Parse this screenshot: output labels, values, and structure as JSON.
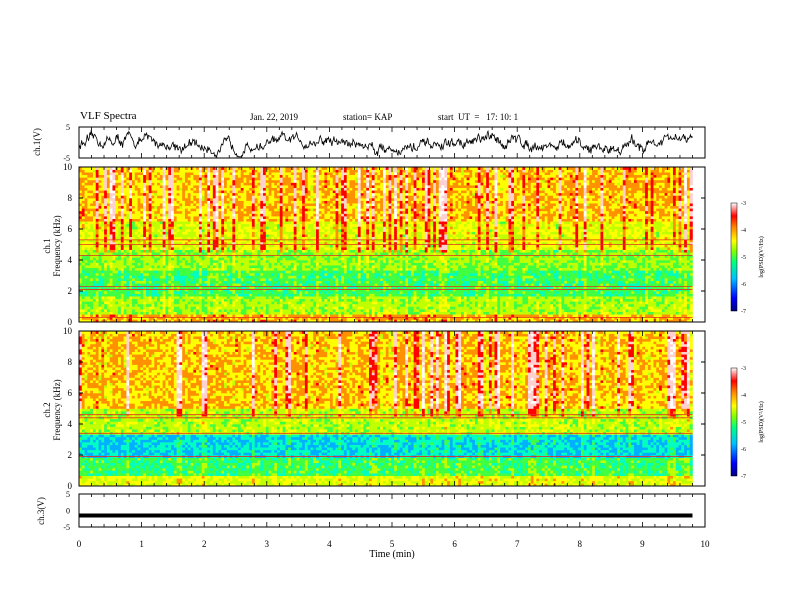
{
  "header": {
    "title": "VLF Spectra",
    "date": "Jan. 22, 2019",
    "station": "station= KAP",
    "start": "start  UT  =   17: 10: 1"
  },
  "colors": {
    "colormap": [
      "#000080",
      "#0000ff",
      "#00b0ff",
      "#00ffc0",
      "#40ff40",
      "#c0ff00",
      "#ffff00",
      "#ff9000",
      "#ff0000",
      "#ffd0d0",
      "#ffffff"
    ],
    "waveform": "#000000"
  },
  "chart_data": [
    {
      "type": "line",
      "name": "ch1-waveform",
      "ylabel": "ch.1(V)",
      "ylim": [
        -5,
        5
      ],
      "yticks": [
        "5",
        "-5"
      ],
      "xlim": [
        0,
        9.8
      ],
      "description_values": "noisy signal fluctuating mostly between -3 and 2 V"
    },
    {
      "type": "heatmap",
      "name": "ch1-spectrogram",
      "ylabel_top": "ch.1",
      "ylabel": "Frequency (kHz)",
      "ylim": [
        0,
        10
      ],
      "yticks": [
        "0",
        "2",
        "4",
        "6",
        "8",
        "10"
      ],
      "xlim": [
        0,
        9.8
      ],
      "colorbar": {
        "label": "log(PSD)(V²/Hz)",
        "range": [
          -7,
          -3
        ],
        "ticks": [
          "-3",
          "-4",
          "-5",
          "-6",
          "-7"
        ]
      },
      "bands": [
        {
          "range": [
            0,
            0.5
          ],
          "level": -4.2
        },
        {
          "range": [
            0.5,
            1.6
          ],
          "level": -4.9
        },
        {
          "range": [
            1.6,
            3.3
          ],
          "level": -5.3
        },
        {
          "range": [
            3.3,
            4.6
          ],
          "level": -5.0
        },
        {
          "range": [
            4.6,
            6.5
          ],
          "level": -4.6
        },
        {
          "range": [
            6.5,
            10
          ],
          "level": -4.2
        }
      ],
      "lines_khz": [
        0.3,
        2.1,
        2.3,
        4.3,
        5.0,
        5.3
      ]
    },
    {
      "type": "heatmap",
      "name": "ch2-spectrogram",
      "ylabel_top": "ch.2",
      "ylabel": "Frequency (kHz)",
      "ylim": [
        0,
        10
      ],
      "yticks": [
        "0",
        "2",
        "4",
        "6",
        "8",
        "10"
      ],
      "xlim": [
        0,
        9.8
      ],
      "colorbar": {
        "label": "log(PSD)(V²/Hz)",
        "range": [
          -7,
          -3
        ],
        "ticks": [
          "-3",
          "-4",
          "-5",
          "-6",
          "-7"
        ]
      },
      "bands": [
        {
          "range": [
            0,
            0.6
          ],
          "level": -4.6
        },
        {
          "range": [
            0.6,
            1.8
          ],
          "level": -5.3
        },
        {
          "range": [
            1.8,
            3.4
          ],
          "level": -5.8
        },
        {
          "range": [
            3.4,
            5.0
          ],
          "level": -4.8
        },
        {
          "range": [
            5.0,
            10
          ],
          "level": -4.2
        }
      ],
      "lines_khz": [
        1.9,
        3.4,
        4.4,
        4.6
      ]
    },
    {
      "type": "line",
      "name": "ch3-waveform",
      "ylabel": "ch.3(V)",
      "ylim": [
        -5,
        5
      ],
      "yticks": [
        "5",
        "0",
        "-5"
      ],
      "xlim": [
        0,
        9.8
      ],
      "constant_value": -1.5
    }
  ],
  "xaxis": {
    "label": "Time (min)",
    "ticks": [
      "0",
      "1",
      "2",
      "3",
      "4",
      "5",
      "6",
      "7",
      "8",
      "9",
      "10"
    ],
    "range": [
      0,
      10
    ]
  }
}
